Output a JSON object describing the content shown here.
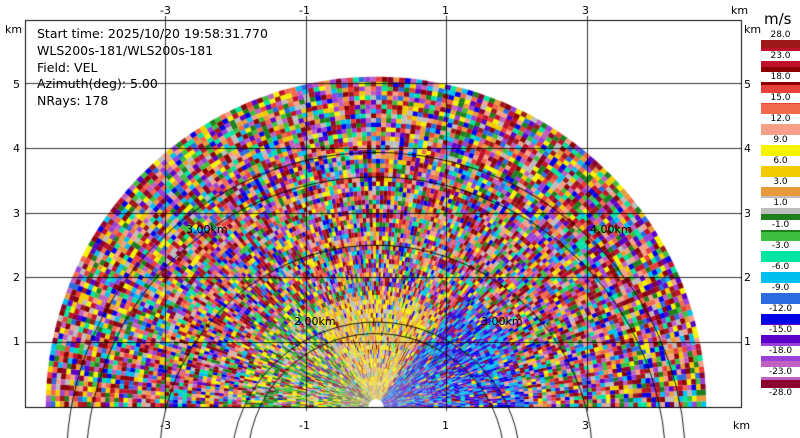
{
  "header": {
    "start_time": "Start time: 2025/10/20 19:58:31.770",
    "instrument": "WLS200s-181/WLS200s-181",
    "field": "Field: VEL",
    "azimuth": "Azimuth(deg): 5.00",
    "nrays": "NRays: 178"
  },
  "axes": {
    "x_ticks": [
      "-3",
      "-1",
      "1",
      "3"
    ],
    "y_ticks": [
      "1",
      "2",
      "3",
      "4",
      "5"
    ],
    "unit_label": "km"
  },
  "range_rings": [
    "2.00km",
    "3.00km",
    "4.00km"
  ],
  "colorbar": {
    "title": "m/s",
    "labels": [
      "28.0",
      "23.0",
      "18.0",
      "15.0",
      "12.0",
      "9.0",
      "6.0",
      "3.0",
      "1.0",
      "-1.0",
      "-3.0",
      "-6.0",
      "-9.0",
      "-12.0",
      "-15.0",
      "-18.0",
      "-23.0",
      "-28.0"
    ],
    "colors": [
      "#9e1a1a",
      "#c0102a",
      "#8a0000",
      "#e8403a",
      "#f16a4e",
      "#f6a089",
      "#f4f400",
      "#f2cc00",
      "#e89b3a",
      "#bdbdbd",
      "#1f7f1f",
      "#3fbf3f",
      "#00e5a0",
      "#00c0f0",
      "#2a6be0",
      "#0000e8",
      "#5a00c8",
      "#9a40d8",
      "#c060c0",
      "#8a0030"
    ]
  }
}
